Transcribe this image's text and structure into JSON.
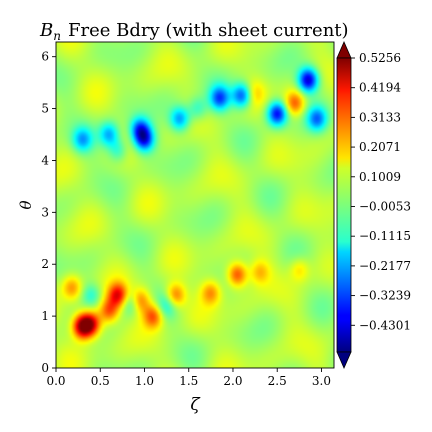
{
  "chart_data": {
    "type": "heatmap",
    "title": "$B_n$ Free Bdry (with sheet current)",
    "title_symbol": "B",
    "title_subscript": "n",
    "title_text": "Free Bdry (with sheet current)",
    "xlabel": "ζ",
    "ylabel": "θ",
    "xlim": [
      0.0,
      3.14159
    ],
    "ylim": [
      0.0,
      6.28318
    ],
    "xticks": [
      "0.0",
      "0.5",
      "1.0",
      "1.5",
      "2.0",
      "2.5",
      "3.0"
    ],
    "xtick_values": [
      0.0,
      0.5,
      1.0,
      1.5,
      2.0,
      2.5,
      3.0
    ],
    "yticks": [
      "0",
      "1",
      "2",
      "3",
      "4",
      "5",
      "6"
    ],
    "ytick_values": [
      0,
      1,
      2,
      3,
      4,
      5,
      6
    ],
    "colormap": "jet",
    "colorbar": {
      "vmin": -0.5256,
      "vmax": 0.5256,
      "extend": "both",
      "tick_labels": [
        "0.5256",
        "0.4194",
        "0.3133",
        "0.2071",
        "0.1009",
        "−0.0053",
        "−0.1115",
        "−0.2177",
        "−0.3239",
        "−0.4301"
      ],
      "tick_values": [
        0.5256,
        0.4194,
        0.3133,
        0.2071,
        0.1009,
        -0.0053,
        -0.1115,
        -0.2177,
        -0.3239,
        -0.4301
      ]
    },
    "background_level": 0.05,
    "features": [
      {
        "zeta": 0.3,
        "theta": 0.8,
        "value": 0.52
      },
      {
        "zeta": 0.4,
        "theta": 0.85,
        "value": 0.4
      },
      {
        "zeta": 0.6,
        "theta": 1.1,
        "value": 0.32
      },
      {
        "zeta": 0.7,
        "theta": 1.4,
        "value": 0.4
      },
      {
        "zeta": 0.95,
        "theta": 1.3,
        "value": 0.28
      },
      {
        "zeta": 1.1,
        "theta": 1.0,
        "value": 0.32
      },
      {
        "zeta": 1.35,
        "theta": 1.4,
        "value": 0.3
      },
      {
        "zeta": 0.18,
        "theta": 1.55,
        "value": 0.25
      },
      {
        "zeta": 1.75,
        "theta": 1.45,
        "value": 0.25
      },
      {
        "zeta": 2.05,
        "theta": 1.8,
        "value": 0.35
      },
      {
        "zeta": 2.3,
        "theta": 1.85,
        "value": 0.2
      },
      {
        "zeta": 2.75,
        "theta": 1.9,
        "value": 0.18
      },
      {
        "zeta": 2.7,
        "theta": 5.1,
        "value": 0.3
      },
      {
        "zeta": 2.25,
        "theta": 5.3,
        "value": 0.15
      },
      {
        "zeta": 0.3,
        "theta": 4.4,
        "value": -0.2
      },
      {
        "zeta": 0.6,
        "theta": 4.5,
        "value": -0.22
      },
      {
        "zeta": 0.95,
        "theta": 4.6,
        "value": -0.3
      },
      {
        "zeta": 1.0,
        "theta": 4.4,
        "value": -0.35
      },
      {
        "zeta": 1.4,
        "theta": 4.8,
        "value": -0.25
      },
      {
        "zeta": 1.85,
        "theta": 5.2,
        "value": -0.3
      },
      {
        "zeta": 2.1,
        "theta": 5.25,
        "value": -0.32
      },
      {
        "zeta": 2.5,
        "theta": 4.9,
        "value": -0.4
      },
      {
        "zeta": 2.85,
        "theta": 5.55,
        "value": -0.45
      },
      {
        "zeta": 2.95,
        "theta": 4.8,
        "value": -0.25
      },
      {
        "zeta": 0.4,
        "theta": 1.4,
        "value": -0.1
      },
      {
        "zeta": 0.85,
        "theta": 1.25,
        "value": -0.1
      },
      {
        "zeta": 1.25,
        "theta": 1.2,
        "value": -0.08
      },
      {
        "zeta": 0.7,
        "theta": 4.2,
        "value": -0.12
      },
      {
        "zeta": 1.6,
        "theta": 5.0,
        "value": -0.1
      }
    ]
  }
}
